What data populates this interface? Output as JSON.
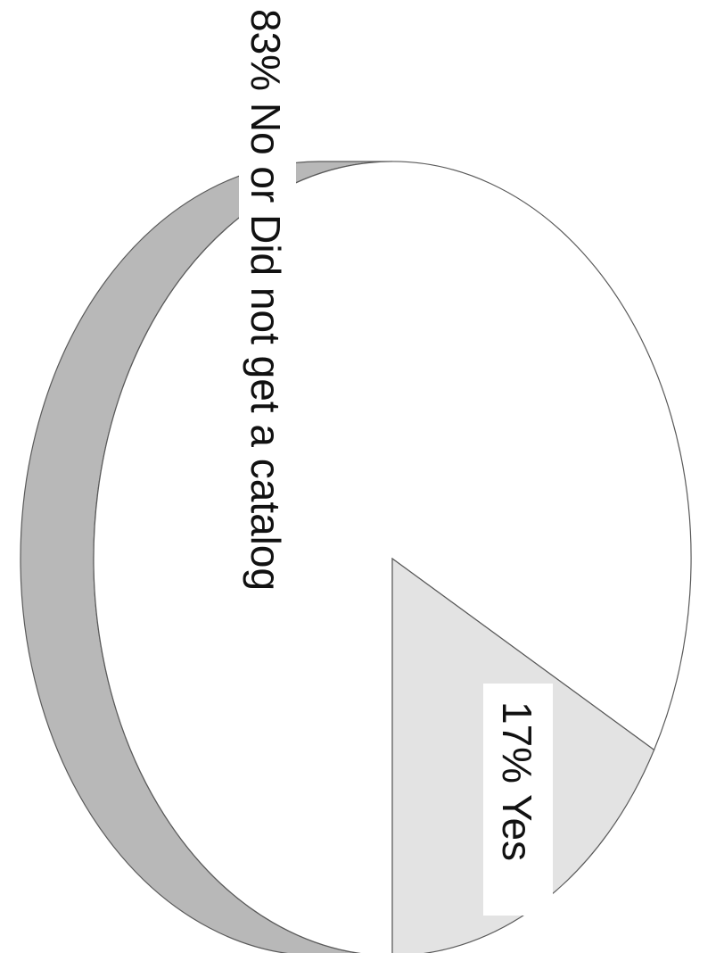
{
  "chart_data": {
    "type": "pie",
    "style": "3d-tilted-rotated",
    "slices": [
      {
        "label": "Yes",
        "value": 17,
        "display": "17%  Yes",
        "color": "#e3e3e3"
      },
      {
        "label": "No or Did not get a catalog",
        "value": 83,
        "display": "83%  No or Did not get a catalog",
        "color": "#ffffff"
      }
    ],
    "title": "",
    "legend": "none"
  },
  "colors": {
    "edge": "#b8b8b8",
    "outline": "#5a5a5a"
  }
}
